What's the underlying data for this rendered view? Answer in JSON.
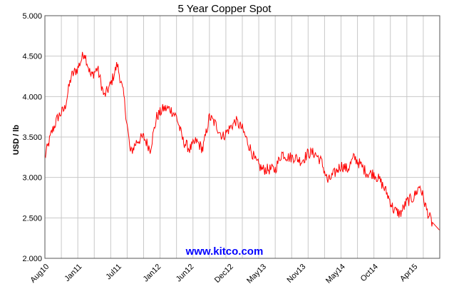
{
  "chart_data": {
    "type": "line",
    "title": "5 Year Copper Spot",
    "xlabel": "",
    "ylabel": "USD / lb",
    "ylim": [
      2.0,
      5.0
    ],
    "yticks": [
      "2.000",
      "2.500",
      "3.000",
      "3.500",
      "4.000",
      "4.500",
      "5.000"
    ],
    "x_tick_labels": [
      "Aug10",
      "Jan11",
      "Jul11",
      "Jan12",
      "Jun12",
      "Dec12",
      "May13",
      "Nov13",
      "May14",
      "Oct14",
      "Apr15"
    ],
    "grid": true,
    "line_color": "#ff0000",
    "watermark": "www.kitco.com",
    "watermark_color": "#0000ff",
    "series": [
      {
        "x": [
          "2010-08",
          "2010-09",
          "2010-10",
          "2010-11",
          "2010-12",
          "2011-01",
          "2011-02",
          "2011-03",
          "2011-04",
          "2011-05",
          "2011-06",
          "2011-07",
          "2011-08",
          "2011-09",
          "2011-10",
          "2011-11",
          "2011-12",
          "2012-01",
          "2012-02",
          "2012-03",
          "2012-04",
          "2012-05",
          "2012-06",
          "2012-07",
          "2012-08",
          "2012-09",
          "2012-10",
          "2012-11",
          "2012-12",
          "2013-01",
          "2013-02",
          "2013-03",
          "2013-04",
          "2013-05",
          "2013-06",
          "2013-07",
          "2013-08",
          "2013-09",
          "2013-10",
          "2013-11",
          "2013-12",
          "2014-01",
          "2014-02",
          "2014-03",
          "2014-04",
          "2014-05",
          "2014-06",
          "2014-07",
          "2014-08",
          "2014-09",
          "2014-10",
          "2014-11",
          "2014-12",
          "2015-01",
          "2015-02",
          "2015-03",
          "2015-04",
          "2015-05",
          "2015-06",
          "2015-07"
        ],
        "values": [
          3.25,
          3.55,
          3.75,
          3.85,
          4.25,
          4.35,
          4.55,
          4.25,
          4.35,
          4.0,
          4.15,
          4.4,
          4.0,
          3.3,
          3.45,
          3.5,
          3.35,
          3.75,
          3.85,
          3.85,
          3.75,
          3.45,
          3.35,
          3.45,
          3.35,
          3.75,
          3.65,
          3.5,
          3.6,
          3.7,
          3.6,
          3.4,
          3.2,
          3.1,
          3.1,
          3.1,
          3.3,
          3.25,
          3.25,
          3.2,
          3.3,
          3.3,
          3.2,
          2.95,
          3.05,
          3.15,
          3.1,
          3.25,
          3.15,
          3.05,
          3.05,
          2.95,
          2.8,
          2.6,
          2.55,
          2.7,
          2.75,
          2.9,
          2.6,
          2.4
        ]
      }
    ]
  }
}
